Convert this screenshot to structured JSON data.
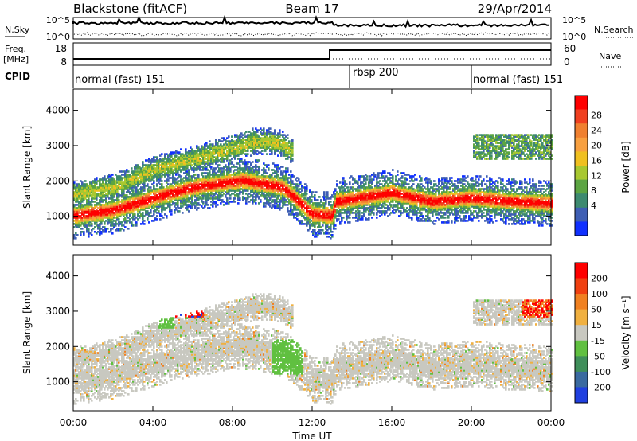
{
  "header": {
    "station": "Blackstone (fitACF)",
    "beam": "Beam 17",
    "date": "29/Apr/2014"
  },
  "nsky_panel": {
    "left_label": "N.Sky",
    "right_label": "N.Search",
    "ticks_left": [
      "10^5",
      "10^0"
    ],
    "ticks_right": [
      "10^5",
      "10^0"
    ]
  },
  "freq_panel": {
    "left_label_1": "Freq.",
    "left_label_2": "[MHz]",
    "right_label": "Nave",
    "ticks_left": [
      "18",
      "8"
    ],
    "ticks_right": [
      "60",
      "0"
    ]
  },
  "cpid_panel": {
    "label": "CPID",
    "segments": [
      {
        "label": "normal (fast) 151",
        "start": 0,
        "end": 13.8
      },
      {
        "label": "rbsp 200",
        "start": 13.8,
        "end": 19.7
      },
      {
        "label": "normal (fast) 151",
        "start": 19.7,
        "end": 24
      }
    ]
  },
  "chart_data": [
    {
      "type": "heatmap",
      "name": "power",
      "ylabel": "Slant Range [km]",
      "ylim": [
        180,
        4600
      ],
      "yticks": [
        "1000",
        "2000",
        "3000",
        "4000"
      ],
      "colorbar_label": "Power [dB]",
      "colorbar_ticks": [
        "4",
        "8",
        "12",
        "16",
        "20",
        "24",
        "28"
      ],
      "colorbar_colors": [
        "#1030ff",
        "#3e5eb4",
        "#3d8a70",
        "#5ca542",
        "#a8c830",
        "#f0c020",
        "#f8a040",
        "#f08030",
        "#f04020",
        "#ff0000"
      ],
      "bands": [
        {
          "x": [
            0,
            2,
            4,
            6,
            8.5,
            10.5,
            12,
            13,
            13.2,
            16,
            18,
            20,
            22,
            24
          ],
          "y": [
            1000,
            1150,
            1500,
            1800,
            2000,
            1800,
            1050,
            1000,
            1400,
            1650,
            1400,
            1500,
            1400,
            1350
          ]
        },
        {
          "x": [
            0,
            2,
            4,
            6,
            8,
            9,
            10,
            10.5,
            11
          ],
          "y": [
            1600,
            1800,
            2300,
            2600,
            2900,
            3100,
            3100,
            3000,
            2800
          ]
        }
      ]
    },
    {
      "type": "heatmap",
      "name": "velocity",
      "ylabel": "Slant Range [km]",
      "ylim": [
        180,
        4600
      ],
      "yticks": [
        "1000",
        "2000",
        "3000",
        "4000"
      ],
      "colorbar_label": "Velocity [m s⁻¹]",
      "colorbar_ticks": [
        "200",
        "100",
        "50",
        "15",
        "-15",
        "-50",
        "-100",
        "-200"
      ],
      "colorbar_colors": [
        "#2040e0",
        "#3a6aa0",
        "#3f8f5a",
        "#60c040",
        "#c8c8c0",
        "#f0b040",
        "#f08020",
        "#f04010",
        "#ff0000"
      ]
    }
  ],
  "xaxis": {
    "label": "Time UT",
    "ticks": [
      "00:00",
      "04:00",
      "08:00",
      "12:00",
      "16:00",
      "20:00",
      "00:00"
    ],
    "range": [
      0,
      24
    ]
  }
}
